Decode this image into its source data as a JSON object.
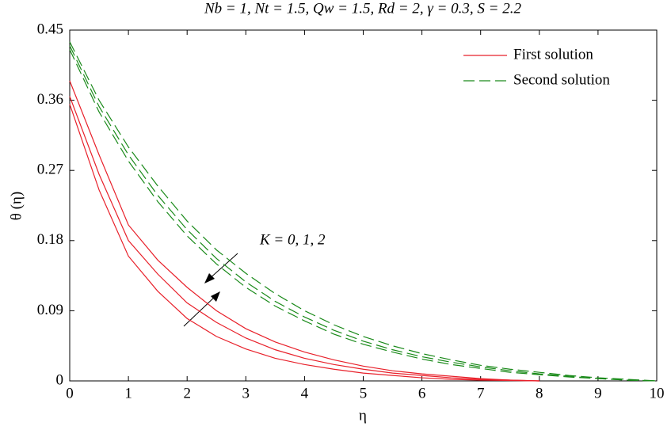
{
  "chart_data": {
    "type": "line",
    "title": "Nb = 1, Nt = 1.5, Qw = 1.5, Rd = 2, γ = 0.3, S = 2.2",
    "x_label": "η",
    "y_label": "θ (η)",
    "annotation": "K = 0, 1, 2",
    "x": [
      0,
      0.5,
      1,
      1.5,
      2,
      2.5,
      3,
      3.5,
      4,
      4.5,
      5,
      5.5,
      6,
      6.5,
      7,
      7.5,
      8,
      8.5,
      9,
      9.5,
      10
    ],
    "series": [
      {
        "name": "First solution",
        "color": "#e8202a",
        "dash": false,
        "values": [
          0.385,
          0.29,
          0.2,
          0.155,
          0.12,
          0.09,
          0.067,
          0.05,
          0.037,
          0.027,
          0.019,
          0.013,
          0.009,
          0.006,
          0.003,
          0.001,
          0,
          null,
          null,
          null,
          null
        ]
      },
      {
        "name": "First solution",
        "color": "#e8202a",
        "dash": false,
        "values": [
          0.365,
          0.265,
          0.18,
          0.137,
          0.1,
          0.075,
          0.055,
          0.04,
          0.029,
          0.021,
          0.015,
          0.01,
          0.007,
          0.004,
          0.002,
          0.001,
          0,
          null,
          null,
          null,
          null
        ]
      },
      {
        "name": "First solution",
        "color": "#e8202a",
        "dash": false,
        "values": [
          0.355,
          0.245,
          0.16,
          0.115,
          0.08,
          0.057,
          0.041,
          0.029,
          0.021,
          0.015,
          0.01,
          0.007,
          0.004,
          0.002,
          0.001,
          0.0005,
          0,
          null,
          null,
          null,
          null
        ]
      },
      {
        "name": "Second solution",
        "color": "#1a8a1a",
        "dash": true,
        "values": [
          0.435,
          0.36,
          0.3,
          0.25,
          0.205,
          0.168,
          0.138,
          0.112,
          0.09,
          0.072,
          0.057,
          0.045,
          0.035,
          0.027,
          0.02,
          0.015,
          0.011,
          0.007,
          0.004,
          0.002,
          0
        ]
      },
      {
        "name": "Second solution",
        "color": "#1a8a1a",
        "dash": true,
        "values": [
          0.43,
          0.352,
          0.29,
          0.238,
          0.194,
          0.157,
          0.127,
          0.102,
          0.082,
          0.065,
          0.051,
          0.04,
          0.031,
          0.024,
          0.018,
          0.013,
          0.009,
          0.006,
          0.003,
          0.001,
          0
        ]
      },
      {
        "name": "Second solution",
        "color": "#1a8a1a",
        "dash": true,
        "values": [
          0.425,
          0.345,
          0.282,
          0.23,
          0.186,
          0.15,
          0.12,
          0.096,
          0.077,
          0.06,
          0.047,
          0.037,
          0.028,
          0.021,
          0.016,
          0.011,
          0.008,
          0.005,
          0.003,
          0.001,
          0
        ]
      }
    ],
    "xlim": [
      0,
      10
    ],
    "xticks": [
      0,
      1,
      2,
      3,
      4,
      5,
      6,
      7,
      8,
      9,
      10
    ],
    "ylim": [
      0,
      0.45
    ],
    "yticks": [
      0,
      0.09,
      0.18,
      0.27,
      0.36,
      0.45
    ],
    "grid": false,
    "legend": "top-right"
  }
}
